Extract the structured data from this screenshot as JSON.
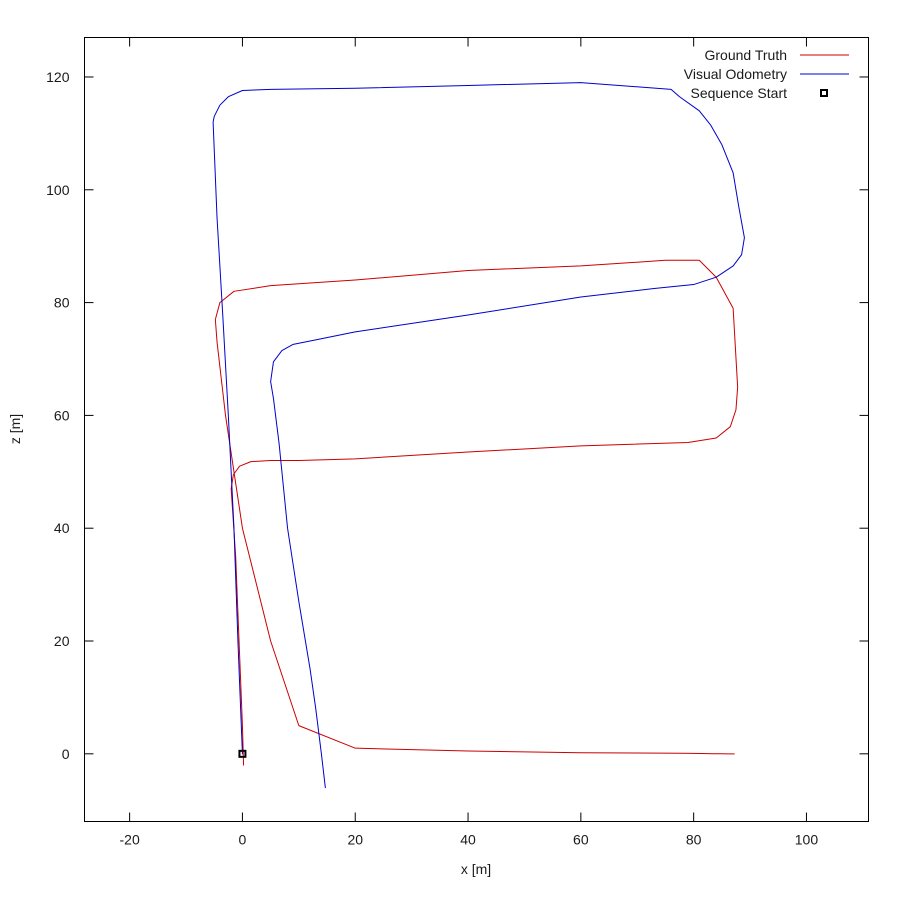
{
  "chart_data": {
    "type": "line",
    "title": "",
    "xlabel": "x [m]",
    "ylabel": "z [m]",
    "xlim": [
      -28,
      111
    ],
    "ylim": [
      -12,
      127
    ],
    "xticks": [
      -20,
      0,
      20,
      40,
      60,
      80,
      100
    ],
    "yticks": [
      0,
      20,
      40,
      60,
      80,
      100,
      120
    ],
    "grid": false,
    "legend": "top-right",
    "series": [
      {
        "name": "Ground Truth",
        "color": "#cc0000",
        "x": [
          0.2,
          0.0,
          -0.6,
          -1.2,
          -1.8,
          -2.0,
          -1.6,
          -0.5,
          1.5,
          5.0,
          10.0,
          20.0,
          40.0,
          60.0,
          79.0,
          84.0,
          86.5,
          87.5,
          87.8,
          87.0,
          84.0,
          81.0,
          75.0,
          60.0,
          40.0,
          20.0,
          5.0,
          -1.5,
          -4.0,
          -4.8,
          -4.5,
          -3.0,
          0.0,
          5.0,
          10.0,
          20.0,
          40.0,
          60.0,
          78.0,
          81.5,
          83.5,
          85.0,
          86.0,
          86.5,
          87.0,
          87.2
        ],
        "y": [
          -2,
          5,
          20,
          35,
          44,
          47,
          49.5,
          51,
          51.8,
          52,
          52,
          52.3,
          53.5,
          54.6,
          55.2,
          56,
          58,
          61,
          65,
          79,
          84.5,
          87.5,
          87.5,
          86.5,
          85.7,
          84.0,
          83.0,
          82.0,
          80.0,
          77.0,
          73.0,
          60.0,
          40.0,
          20.0,
          5.0,
          1.0,
          0.5,
          0.2,
          0.1,
          0.05,
          0.02,
          0.01,
          0.0,
          0.0,
          0.0,
          0.0
        ]
      },
      {
        "name": "Visual Odometry",
        "color": "#0000cc",
        "x": [
          14.7,
          14.0,
          13.0,
          12.0,
          10.0,
          8.0,
          6.5,
          5.5,
          5.0,
          5.5,
          7.0,
          9.0,
          12.0,
          20.0,
          40.0,
          60.0,
          73.0,
          80.0,
          84.0,
          87.0,
          88.5,
          89.0,
          88.0,
          87.0,
          85.0,
          83.0,
          81.0,
          77.5,
          76.0,
          60.0,
          40.0,
          20.0,
          5.0,
          0.0,
          -2.5,
          -4.0,
          -5.0,
          -5.2,
          -4.5,
          -3.5,
          -2.5,
          -1.5,
          -0.8,
          0.0
        ],
        "y": [
          -6,
          0,
          8,
          15,
          27,
          40,
          55,
          63,
          66,
          69.5,
          71.5,
          72.6,
          73.2,
          74.8,
          77.8,
          81.0,
          82.5,
          83.2,
          84.5,
          86.5,
          88.5,
          91.5,
          97,
          103,
          108,
          111.5,
          114,
          116.5,
          117.8,
          119.0,
          118.5,
          118.0,
          117.8,
          117.6,
          116.5,
          115,
          113,
          112,
          95,
          78,
          60,
          40,
          20,
          0
        ]
      }
    ],
    "annotations": [
      {
        "name": "Sequence Start",
        "marker": "square",
        "color": "#000000",
        "x": 0.0,
        "y": 0.0
      }
    ]
  }
}
